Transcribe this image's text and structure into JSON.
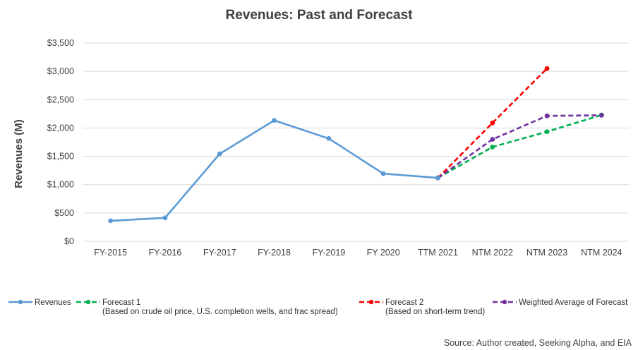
{
  "chart_data": {
    "type": "line",
    "title": "Revenues: Past and Forecast",
    "xlabel": "",
    "ylabel": "Revenues (M)",
    "ylim": [
      0,
      3500
    ],
    "y_ticks": [
      "$0",
      "$500",
      "$1,000",
      "$1,500",
      "$2,000",
      "$2,500",
      "$3,000",
      "$3,500"
    ],
    "grid": "horizontal",
    "legend_position": "bottom",
    "categories": [
      "FY-2015",
      "FY-2016",
      "FY-2017",
      "FY-2018",
      "FY-2019",
      "FY 2020",
      "TTM 2021",
      "NTM 2022",
      "NTM 2023",
      "NTM 2024"
    ],
    "series": [
      {
        "name": "Revenues",
        "color": "#5B9BD5",
        "style": "solid",
        "values": [
          363,
          415,
          1545,
          2135,
          1815,
          1195,
          1120,
          null,
          null,
          null
        ]
      },
      {
        "name": "Forecast 1",
        "note": "(Based on crude oil price, U.S. completion wells, and frac spread)",
        "color": "#00B050",
        "style": "dashed",
        "values": [
          null,
          null,
          null,
          null,
          null,
          null,
          1120,
          1665,
          1935,
          2230
        ]
      },
      {
        "name": "Forecast 2",
        "note": "(Based on short-term trend)",
        "color": "#FF0000",
        "style": "dashed",
        "values": [
          null,
          null,
          null,
          null,
          null,
          null,
          1120,
          2090,
          3050,
          null
        ]
      },
      {
        "name": "Weighted Average of Forecast",
        "color": "#7030A0",
        "style": "dashed",
        "values": [
          null,
          null,
          null,
          null,
          null,
          null,
          1120,
          1800,
          2215,
          2225
        ]
      }
    ]
  },
  "source": "Source: Author created, Seeking Alpha, and EIA"
}
